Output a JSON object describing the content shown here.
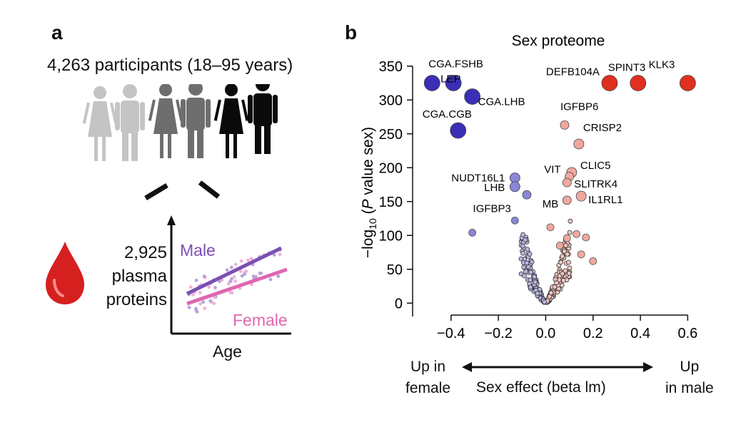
{
  "panel_a": {
    "letter": "a",
    "participants": "4,263 participants (18–95 years)",
    "proteins_line1": "2,925",
    "proteins_line2": "plasma",
    "proteins_line3": "proteins",
    "male_label": "Male",
    "female_label": "Female",
    "age_label": "Age",
    "colors": {
      "male": "#7b4fb3",
      "female": "#e066b0",
      "blood": "#d62020"
    },
    "icons": [
      "person-light-gray-female",
      "person-light-gray-male",
      "person-mid-gray-female",
      "person-mid-gray-male",
      "person-black-female",
      "person-black-male",
      "blood-drop-icon"
    ]
  },
  "panel_b": {
    "letter": "b",
    "annotation_left": "Up in\nfemale",
    "annotation_center": "Sex effect (beta lm)",
    "annotation_right": "Up\nin male"
  },
  "chart_data": {
    "type": "scatter",
    "title": "Sex proteome",
    "xlabel": "",
    "ylabel": "−log10 (P value sex)",
    "xlim": [
      -0.52,
      0.62
    ],
    "ylim": [
      -5,
      355
    ],
    "xticks": [
      -0.4,
      -0.2,
      0.0,
      0.2,
      0.4,
      0.6
    ],
    "xtick_labels": [
      "−0.4",
      "−0.2",
      "0.0",
      "0.2",
      "0.4",
      "0.6"
    ],
    "yticks": [
      0,
      50,
      100,
      150,
      200,
      250,
      300,
      350
    ],
    "ytick_labels": [
      "0",
      "50",
      "100",
      "150",
      "200",
      "250",
      "300",
      "350"
    ],
    "grid": false,
    "colors": {
      "female_strong": "#3a2fb5",
      "female_weak": "#8a86d6",
      "male_strong": "#e0301e",
      "male_weak": "#f0a8a0",
      "neutral": "#c8c8d0"
    },
    "labeled_points": [
      {
        "label": "CGA.FSHB",
        "x": -0.48,
        "y": 325
      },
      {
        "label": "LEP",
        "x": -0.39,
        "y": 325
      },
      {
        "label": "CGA.LHB",
        "x": -0.31,
        "y": 305
      },
      {
        "label": "CGA.CGB",
        "x": -0.37,
        "y": 255
      },
      {
        "label": "NUDT16L1",
        "x": -0.13,
        "y": 185
      },
      {
        "label": "LHB",
        "x": -0.13,
        "y": 172
      },
      {
        "label": "IGFBP3",
        "x": -0.08,
        "y": 160
      },
      {
        "label": "DEFB104A",
        "x": 0.27,
        "y": 325
      },
      {
        "label": "SPINT3",
        "x": 0.39,
        "y": 325
      },
      {
        "label": "KLK3",
        "x": 0.6,
        "y": 325
      },
      {
        "label": "IGFBP6",
        "x": 0.08,
        "y": 263
      },
      {
        "label": "CRISP2",
        "x": 0.14,
        "y": 235
      },
      {
        "label": "CLIC5",
        "x": 0.11,
        "y": 193
      },
      {
        "label": "VIT",
        "x": 0.1,
        "y": 187
      },
      {
        "label": "SLITRK4",
        "x": 0.09,
        "y": 178
      },
      {
        "label": "IL1RL1",
        "x": 0.15,
        "y": 158
      },
      {
        "label": "MB",
        "x": 0.09,
        "y": 152
      }
    ]
  }
}
